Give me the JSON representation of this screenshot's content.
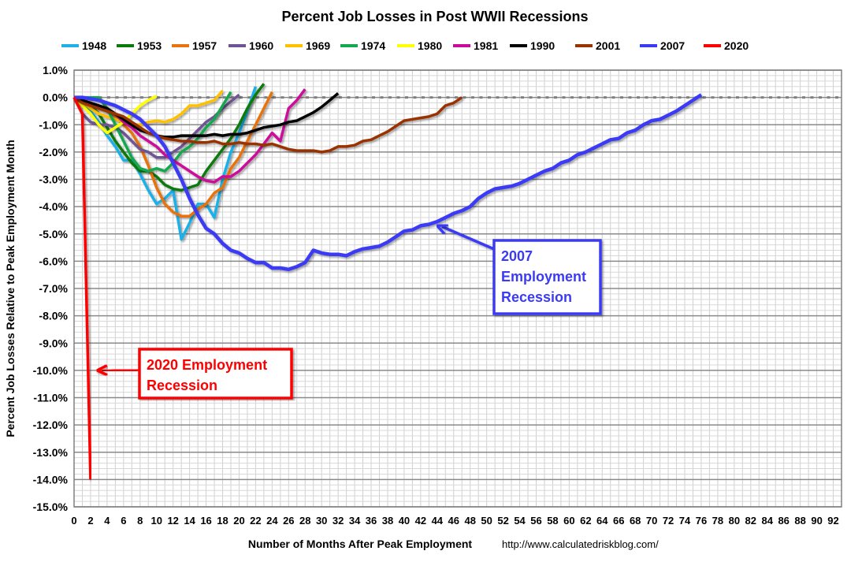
{
  "chart_data": {
    "type": "line",
    "title": "Percent Job Losses in Post WWII Recessions",
    "xlabel": "Number of Months After Peak Employment",
    "ylabel": "Percent Job Losses Relative to Peak Employment Month",
    "source": "http://www.calculatedriskblog.com/",
    "xlim": [
      0,
      93
    ],
    "ylim": [
      -15,
      1
    ],
    "x_ticks": [
      0,
      2,
      4,
      6,
      8,
      10,
      12,
      14,
      16,
      18,
      20,
      22,
      24,
      26,
      28,
      30,
      32,
      34,
      36,
      38,
      40,
      42,
      44,
      46,
      48,
      50,
      52,
      54,
      56,
      58,
      60,
      62,
      64,
      66,
      68,
      70,
      72,
      74,
      76,
      78,
      80,
      82,
      84,
      86,
      88,
      90,
      92
    ],
    "y_ticks": [
      "1.0%",
      "0.0%",
      "-1.0%",
      "-2.0%",
      "-3.0%",
      "-4.0%",
      "-5.0%",
      "-6.0%",
      "-7.0%",
      "-8.0%",
      "-9.0%",
      "-10.0%",
      "-11.0%",
      "-12.0%",
      "-13.0%",
      "-14.0%",
      "-15.0%"
    ],
    "y_tick_values": [
      1,
      0,
      -1,
      -2,
      -3,
      -4,
      -5,
      -6,
      -7,
      -8,
      -9,
      -10,
      -11,
      -12,
      -13,
      -14,
      -15
    ],
    "grid": true,
    "legend_placement": "top",
    "series": [
      {
        "name": "1948",
        "color": "#1fb0e8",
        "values": [
          0,
          -0.2,
          -0.5,
          -0.9,
          -1.4,
          -1.8,
          -2.3,
          -2.3,
          -2.8,
          -3.4,
          -3.9,
          -3.7,
          -3.4,
          -5.2,
          -4.6,
          -3.9,
          -3.9,
          -4.4,
          -3.0,
          -2.0,
          -1.3,
          -0.5,
          0.4
        ]
      },
      {
        "name": "1953",
        "color": "#0a7a0a",
        "values": [
          0,
          -0.1,
          -0.3,
          -0.6,
          -1.1,
          -1.6,
          -2.0,
          -2.4,
          -2.7,
          -2.7,
          -2.9,
          -3.2,
          -3.35,
          -3.4,
          -3.3,
          -3.2,
          -2.7,
          -2.3,
          -1.9,
          -1.5,
          -1.0,
          -0.4,
          0.1,
          0.5
        ]
      },
      {
        "name": "1957",
        "color": "#e8730f",
        "values": [
          0,
          -0.2,
          -0.3,
          -0.4,
          -0.5,
          -0.7,
          -1.0,
          -1.3,
          -1.8,
          -2.5,
          -3.3,
          -3.9,
          -4.2,
          -4.35,
          -4.35,
          -4.1,
          -3.9,
          -3.5,
          -3.3,
          -2.6,
          -2.2,
          -1.6,
          -1.0,
          -0.4,
          0.2
        ]
      },
      {
        "name": "1960",
        "color": "#6e5494",
        "values": [
          0,
          -0.6,
          -0.9,
          -1.0,
          -1.0,
          -1.1,
          -1.3,
          -1.6,
          -1.9,
          -2.0,
          -2.2,
          -2.2,
          -2.0,
          -1.8,
          -1.5,
          -1.2,
          -0.9,
          -0.7,
          -0.4,
          -0.15,
          0.1
        ]
      },
      {
        "name": "1969",
        "color": "#ffc000",
        "values": [
          0,
          -0.2,
          -0.4,
          -0.6,
          -0.7,
          -0.8,
          -0.9,
          -1.0,
          -1.0,
          -0.9,
          -0.85,
          -0.9,
          -0.8,
          -0.6,
          -0.3,
          -0.3,
          -0.2,
          -0.1,
          0.25
        ]
      },
      {
        "name": "1974",
        "color": "#14a850",
        "values": [
          0,
          0,
          0,
          0,
          -0.4,
          -1.0,
          -1.6,
          -2.2,
          -2.6,
          -2.7,
          -2.6,
          -2.7,
          -2.4,
          -2.0,
          -1.8,
          -1.5,
          -1.1,
          -0.8,
          -0.3,
          0.2
        ]
      },
      {
        "name": "1980",
        "color": "#ffff00",
        "values": [
          0,
          -0.3,
          -0.6,
          -1.0,
          -1.3,
          -1.1,
          -0.9,
          -0.6,
          -0.3,
          -0.1,
          0.05
        ]
      },
      {
        "name": "1981",
        "color": "#cc0a9a",
        "values": [
          0,
          -0.1,
          -0.2,
          -0.3,
          -0.4,
          -0.6,
          -0.9,
          -1.1,
          -1.4,
          -1.6,
          -1.8,
          -2.1,
          -2.3,
          -2.5,
          -2.7,
          -2.9,
          -3.05,
          -3.1,
          -2.9,
          -2.9,
          -2.7,
          -2.4,
          -2.1,
          -1.7,
          -1.3,
          -1.6,
          -0.4,
          -0.1,
          0.3
        ]
      },
      {
        "name": "1990",
        "color": "#000000",
        "values": [
          0,
          -0.1,
          -0.2,
          -0.3,
          -0.4,
          -0.6,
          -0.8,
          -1.0,
          -1.2,
          -1.3,
          -1.4,
          -1.45,
          -1.45,
          -1.4,
          -1.4,
          -1.4,
          -1.4,
          -1.35,
          -1.4,
          -1.35,
          -1.35,
          -1.3,
          -1.2,
          -1.1,
          -1.05,
          -1.0,
          -0.9,
          -0.85,
          -0.7,
          -0.55,
          -0.35,
          -0.1,
          0.15
        ]
      },
      {
        "name": "2001",
        "color": "#993300",
        "values": [
          0,
          -0.2,
          -0.3,
          -0.4,
          -0.5,
          -0.6,
          -0.7,
          -0.9,
          -1.1,
          -1.3,
          -1.4,
          -1.5,
          -1.55,
          -1.6,
          -1.6,
          -1.65,
          -1.65,
          -1.6,
          -1.7,
          -1.7,
          -1.65,
          -1.7,
          -1.7,
          -1.75,
          -1.7,
          -1.8,
          -1.9,
          -1.95,
          -1.95,
          -1.95,
          -2.0,
          -1.95,
          -1.8,
          -1.8,
          -1.75,
          -1.6,
          -1.55,
          -1.4,
          -1.25,
          -1.05,
          -0.85,
          -0.8,
          -0.75,
          -0.7,
          -0.6,
          -0.3,
          -0.2,
          0.0
        ]
      },
      {
        "name": "2007",
        "color": "#3b3bf5",
        "values": [
          0,
          0,
          -0.05,
          -0.1,
          -0.2,
          -0.3,
          -0.45,
          -0.6,
          -0.8,
          -1.1,
          -1.4,
          -1.8,
          -2.4,
          -3.0,
          -3.7,
          -4.3,
          -4.8,
          -5.0,
          -5.35,
          -5.6,
          -5.7,
          -5.9,
          -6.05,
          -6.05,
          -6.25,
          -6.25,
          -6.3,
          -6.2,
          -6.05,
          -5.6,
          -5.7,
          -5.75,
          -5.75,
          -5.8,
          -5.65,
          -5.55,
          -5.5,
          -5.45,
          -5.3,
          -5.1,
          -4.9,
          -4.85,
          -4.7,
          -4.65,
          -4.55,
          -4.4,
          -4.25,
          -4.15,
          -4.0,
          -3.7,
          -3.5,
          -3.35,
          -3.3,
          -3.25,
          -3.15,
          -3.0,
          -2.85,
          -2.7,
          -2.6,
          -2.4,
          -2.3,
          -2.1,
          -2.0,
          -1.85,
          -1.7,
          -1.55,
          -1.5,
          -1.3,
          -1.2,
          -1.0,
          -0.85,
          -0.8,
          -0.65,
          -0.5,
          -0.3,
          -0.1,
          0.1
        ]
      },
      {
        "name": "2020",
        "color": "#ff0000",
        "values": [
          0,
          -0.6,
          -14.0
        ]
      }
    ],
    "annotations": [
      {
        "text_lines": [
          "2007",
          "Employment",
          "Recession"
        ],
        "color": "#3b3bf5",
        "points_to": {
          "x": 44,
          "y": -4.7
        }
      },
      {
        "text_lines": [
          "2020 Employment",
          "Recession"
        ],
        "color": "#ff0000",
        "points_to": {
          "x": 2.8,
          "y": -10.0
        }
      }
    ]
  }
}
